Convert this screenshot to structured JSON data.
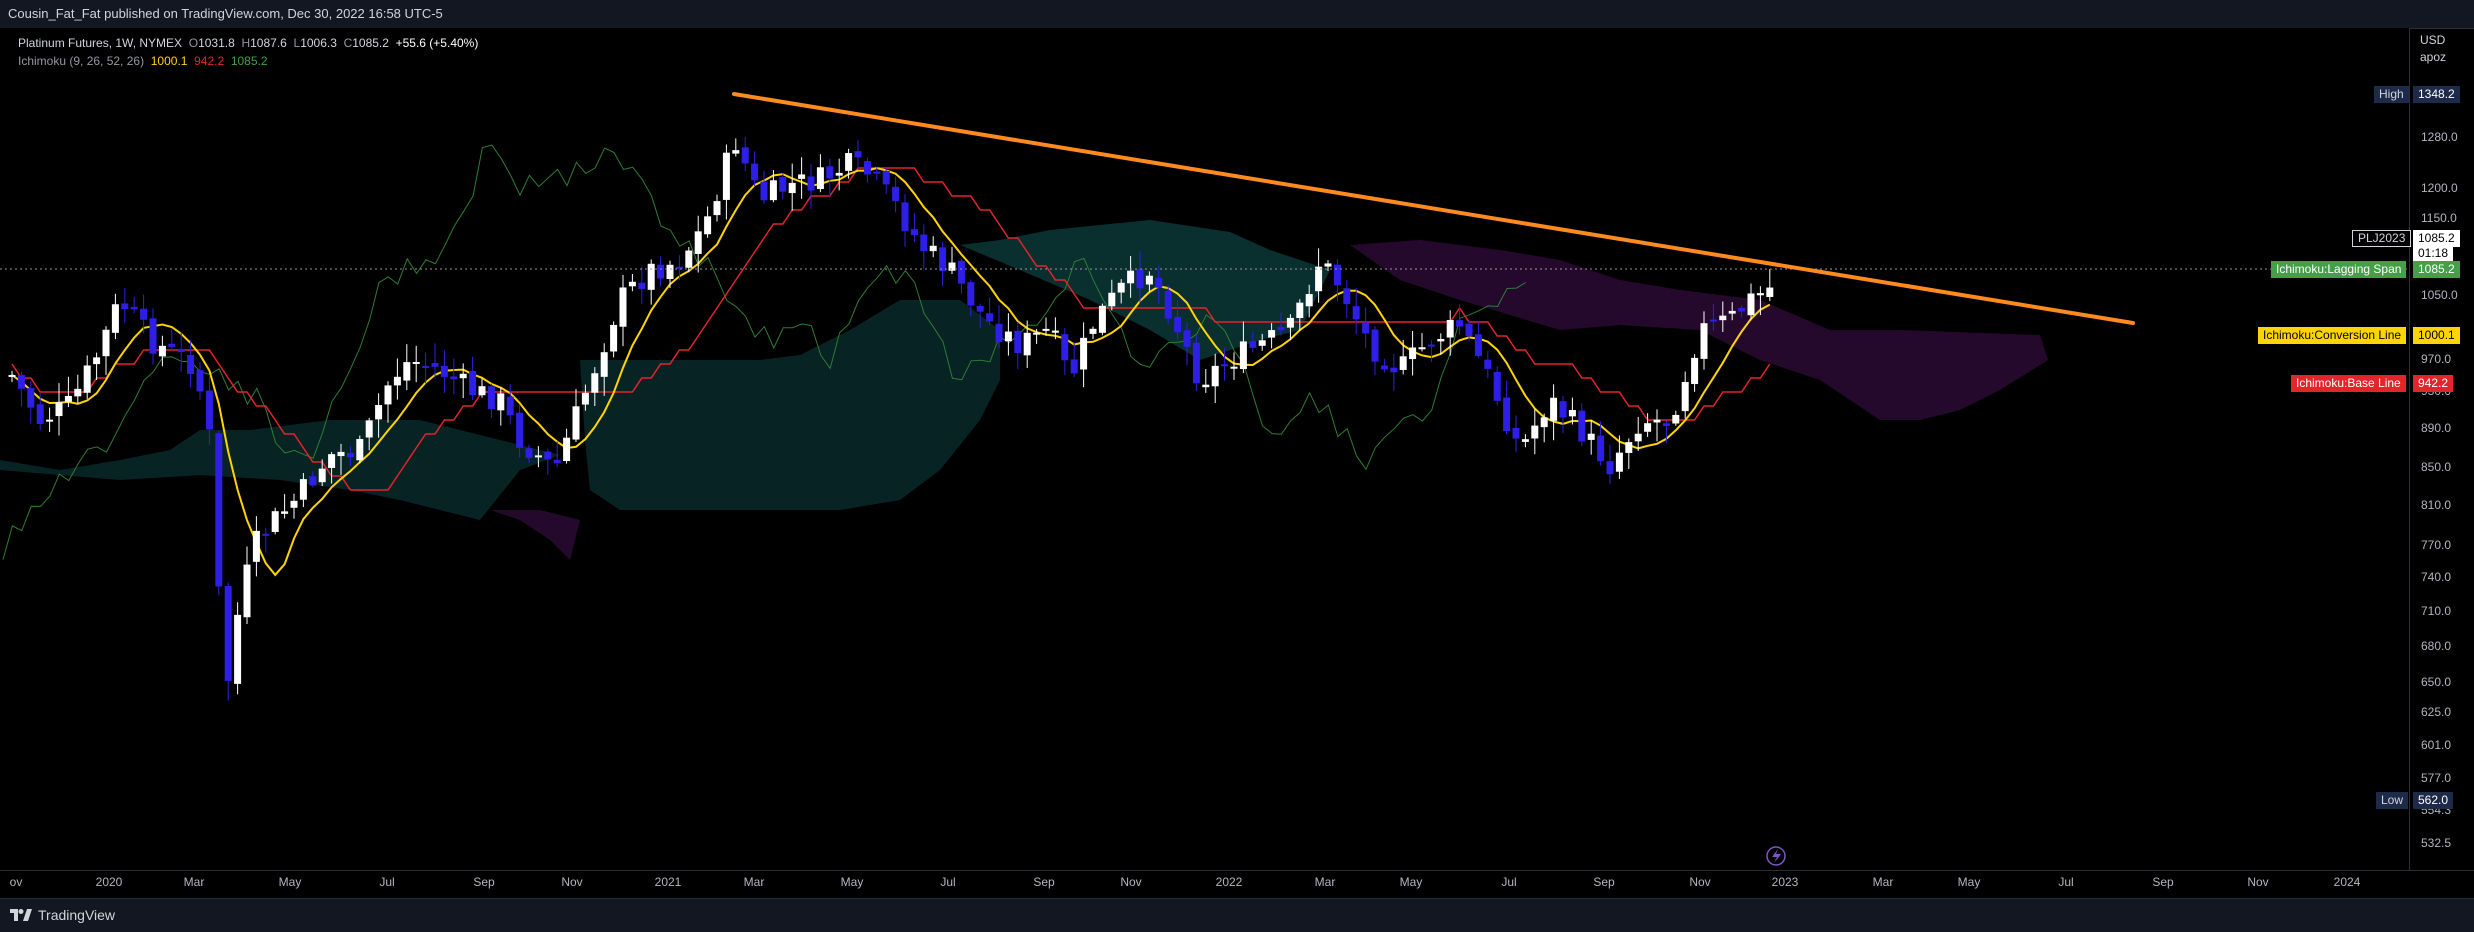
{
  "header": {
    "published": "Cousin_Fat_Fat published on TradingView.com, Dec 30, 2022 16:58 UTC-5"
  },
  "legend": {
    "symbol": "Platinum Futures, 1W, NYMEX",
    "open_label": "O",
    "open": "1031.8",
    "high_label": "H",
    "high": "1087.6",
    "low_label": "L",
    "low": "1006.3",
    "close_label": "C",
    "close": "1085.2",
    "change": "+55.6 (+5.40%)",
    "indicator": "Ichimoku (9, 26, 52, 26)",
    "conv_value": "1000.1",
    "base_value": "942.2",
    "lag_value": "1085.2"
  },
  "axis": {
    "currency": "USD",
    "mode": "apoz",
    "y_ticks": [
      "1280.0",
      "1200.0",
      "1150.0",
      "1050.0",
      "970.0",
      "930.0",
      "890.0",
      "850.0",
      "810.0",
      "770.0",
      "740.0",
      "710.0",
      "680.0",
      "650.0",
      "625.0",
      "601.0",
      "577.0",
      "554.3",
      "532.5"
    ],
    "x_ticks": [
      "ov",
      "2020",
      "Mar",
      "May",
      "Jul",
      "Sep",
      "Nov",
      "2021",
      "Mar",
      "May",
      "Jul",
      "Sep",
      "Nov",
      "2022",
      "Mar",
      "May",
      "Jul",
      "Sep",
      "Nov",
      "2023",
      "Mar",
      "May",
      "Jul",
      "Sep",
      "Nov",
      "2024"
    ]
  },
  "price_labels": {
    "high_tag": "High",
    "high_value": "1348.2",
    "low_tag": "Low",
    "low_value": "562.0",
    "symbol_tag": "PLJ2023",
    "last_price": "1085.2",
    "countdown": "01:18",
    "lagging_tag": "Ichimoku:Lagging Span",
    "lagging_value": "1085.2",
    "conversion_tag": "Ichimoku:Conversion Line",
    "conversion_value": "1000.1",
    "base_tag": "Ichimoku:Base Line",
    "base_value": "942.2"
  },
  "colors": {
    "background": "#000000",
    "up_candle": "#ffffff",
    "down_candle": "#2d1ee8",
    "conversion": "#ffd400",
    "base": "#e3242b",
    "lagging": "#2e7d32",
    "cloud_bull": "#0d3b3b",
    "cloud_bear": "#2b0b35",
    "trendline": "#ff8a1f"
  },
  "footer": {
    "brand": "TradingView"
  }
}
